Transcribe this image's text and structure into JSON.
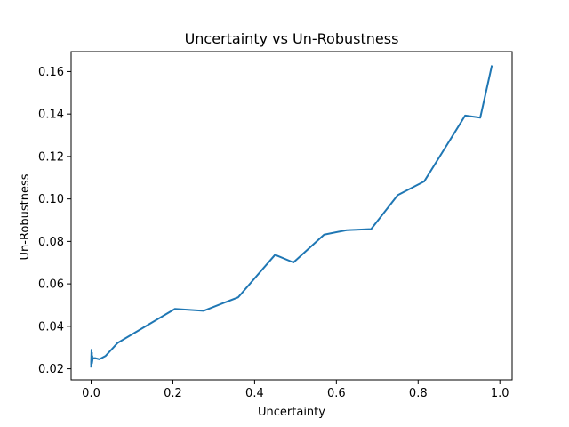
{
  "chart_data": {
    "type": "line",
    "title": "Uncertainty vs Un-Robustness",
    "xlabel": "Uncertainty",
    "ylabel": "Un-Robustness",
    "xlim": [
      -0.049,
      1.03
    ],
    "ylim": [
      0.0148,
      0.1694
    ],
    "xticks": [
      {
        "value": 0.0,
        "label": "0.0"
      },
      {
        "value": 0.2,
        "label": "0.2"
      },
      {
        "value": 0.4,
        "label": "0.4"
      },
      {
        "value": 0.6,
        "label": "0.6"
      },
      {
        "value": 0.8,
        "label": "0.8"
      },
      {
        "value": 1.0,
        "label": "1.0"
      }
    ],
    "yticks": [
      {
        "value": 0.02,
        "label": "0.02"
      },
      {
        "value": 0.04,
        "label": "0.04"
      },
      {
        "value": 0.06,
        "label": "0.06"
      },
      {
        "value": 0.08,
        "label": "0.08"
      },
      {
        "value": 0.1,
        "label": "0.10"
      },
      {
        "value": 0.12,
        "label": "0.12"
      },
      {
        "value": 0.14,
        "label": "0.14"
      },
      {
        "value": 0.16,
        "label": "0.16"
      }
    ],
    "grid": false,
    "series": [
      {
        "color": "#1f77b4",
        "x": [
          0.0,
          0.001,
          0.0,
          0.001,
          0.0,
          0.002,
          0.001,
          0.003,
          0.002,
          0.004,
          0.01,
          0.02,
          0.035,
          0.065,
          0.205,
          0.275,
          0.36,
          0.45,
          0.495,
          0.57,
          0.625,
          0.685,
          0.75,
          0.815,
          0.87,
          0.915,
          0.952,
          0.98
        ],
        "y": [
          0.021,
          0.029,
          0.023,
          0.0285,
          0.022,
          0.0275,
          0.024,
          0.026,
          0.0225,
          0.025,
          0.025,
          0.0245,
          0.026,
          0.0322,
          0.0482,
          0.0473,
          0.0537,
          0.0737,
          0.0701,
          0.0832,
          0.0853,
          0.0858,
          0.1018,
          0.1083,
          0.1253,
          0.1393,
          0.1383,
          0.1625
        ]
      }
    ]
  }
}
